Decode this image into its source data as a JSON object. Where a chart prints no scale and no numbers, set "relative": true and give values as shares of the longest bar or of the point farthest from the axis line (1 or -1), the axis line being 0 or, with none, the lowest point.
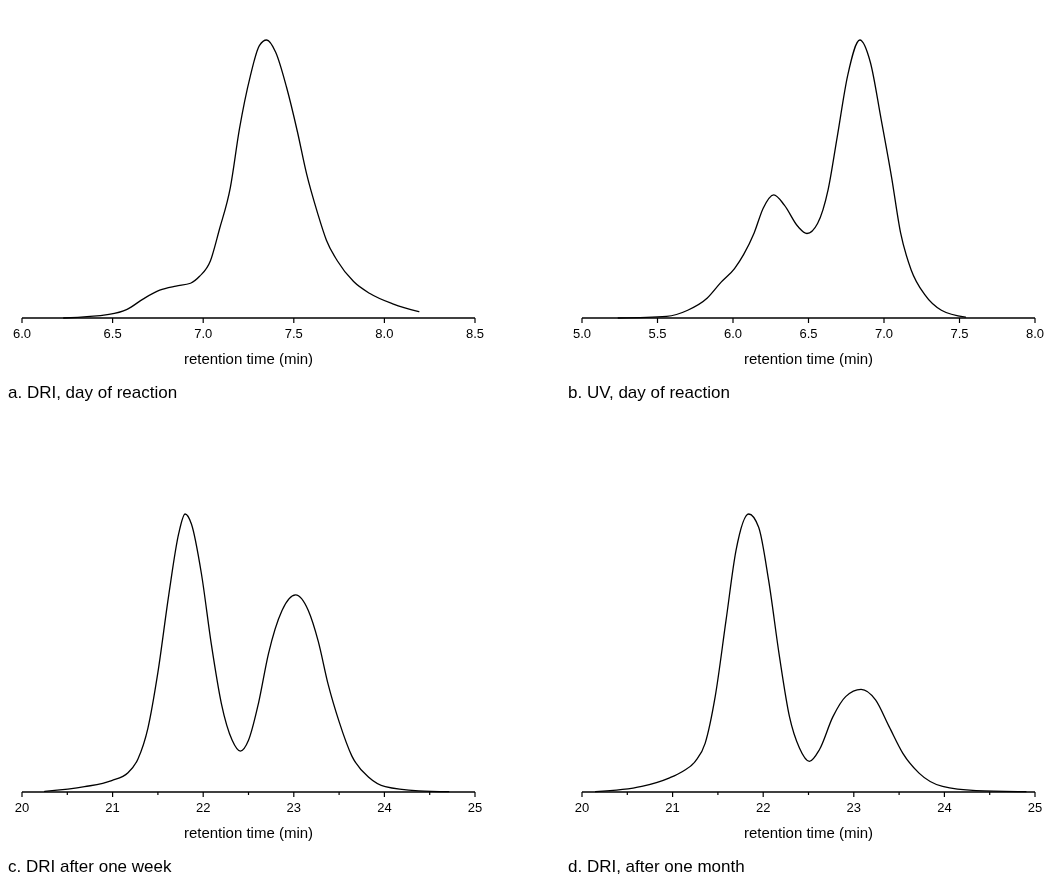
{
  "chart_data": [
    {
      "type": "line",
      "title": "a. DRI, day of reaction",
      "xlabel": "retention time (min)",
      "relative": true,
      "xlim": [
        6.0,
        8.5
      ],
      "xticks": [
        {
          "value": 6,
          "label": "6.0"
        },
        {
          "value": 6.5,
          "label": "6.5"
        },
        {
          "value": 7,
          "label": "7.0"
        },
        {
          "value": 7.5,
          "label": "7.5"
        },
        {
          "value": 8,
          "label": "8.0"
        },
        {
          "value": 8.5,
          "label": "8.5"
        }
      ],
      "x": [
        6.23,
        6.48,
        6.58,
        6.67,
        6.76,
        6.85,
        6.93,
        6.98,
        7.04,
        7.09,
        7.15,
        7.2,
        7.26,
        7.31,
        7.35,
        7.4,
        7.46,
        7.52,
        7.57,
        7.63,
        7.68,
        7.74,
        7.83,
        7.92,
        8.05,
        8.19
      ],
      "series": [
        {
          "color": "#000000",
          "values": [
            0,
            0.013,
            0.031,
            0.069,
            0.1,
            0.115,
            0.125,
            0.15,
            0.206,
            0.32,
            0.47,
            0.68,
            0.87,
            0.98,
            1.0,
            0.956,
            0.83,
            0.67,
            0.52,
            0.38,
            0.28,
            0.206,
            0.131,
            0.088,
            0.05,
            0.023
          ]
        }
      ]
    },
    {
      "type": "line",
      "title": "b. UV, day of reaction",
      "xlabel": "retention time (min)",
      "relative": true,
      "xlim": [
        5.0,
        8.0
      ],
      "xticks": [
        {
          "value": 5,
          "label": "5.0"
        },
        {
          "value": 5.5,
          "label": "5.5"
        },
        {
          "value": 6,
          "label": "6.0"
        },
        {
          "value": 6.5,
          "label": "6.5"
        },
        {
          "value": 7,
          "label": "7.0"
        },
        {
          "value": 7.5,
          "label": "7.5"
        },
        {
          "value": 8,
          "label": "8.0"
        }
      ],
      "x": [
        5.24,
        5.56,
        5.7,
        5.83,
        5.92,
        6.01,
        6.07,
        6.14,
        6.2,
        6.27,
        6.34,
        6.43,
        6.49,
        6.56,
        6.63,
        6.69,
        6.76,
        6.84,
        6.91,
        6.98,
        7.05,
        7.11,
        7.18,
        7.27,
        7.38,
        7.54
      ],
      "series": [
        {
          "color": "#000000",
          "values": [
            0,
            0.006,
            0.028,
            0.072,
            0.128,
            0.178,
            0.228,
            0.306,
            0.395,
            0.443,
            0.406,
            0.329,
            0.304,
            0.34,
            0.462,
            0.651,
            0.874,
            1.0,
            0.919,
            0.718,
            0.507,
            0.306,
            0.173,
            0.084,
            0.028,
            0.003
          ]
        }
      ]
    },
    {
      "type": "line",
      "title": "c. DRI after one week",
      "xlabel": "retention time (min)",
      "relative": true,
      "xlim": [
        20,
        25
      ],
      "xticks": [
        20,
        {
          "value": 20.5,
          "label": null
        },
        21,
        {
          "value": 21.5,
          "label": null
        },
        22,
        {
          "value": 22.5,
          "label": null
        },
        23,
        {
          "value": 23.5,
          "label": null
        },
        24,
        {
          "value": 24.5,
          "label": null
        },
        25
      ],
      "x": [
        20.25,
        20.69,
        20.99,
        21.17,
        21.28,
        21.39,
        21.5,
        21.62,
        21.73,
        21.8,
        21.87,
        21.98,
        22.09,
        22.2,
        22.32,
        22.41,
        22.5,
        22.61,
        22.72,
        22.87,
        23.02,
        23.16,
        23.27,
        23.38,
        23.5,
        23.64,
        23.83,
        24.01,
        24.38,
        24.71
      ],
      "series": [
        {
          "color": "#000000",
          "values": [
            0.002,
            0.019,
            0.041,
            0.069,
            0.119,
            0.23,
            0.43,
            0.709,
            0.93,
            1.0,
            0.964,
            0.786,
            0.531,
            0.319,
            0.186,
            0.147,
            0.186,
            0.319,
            0.497,
            0.653,
            0.709,
            0.653,
            0.542,
            0.386,
            0.253,
            0.13,
            0.052,
            0.019,
            0.004,
            0.001
          ]
        }
      ]
    },
    {
      "type": "line",
      "title": "d. DRI, after one month",
      "xlabel": "retention time (min)",
      "relative": true,
      "xlim": [
        20,
        25
      ],
      "xticks": [
        20,
        {
          "value": 20.5,
          "label": null
        },
        21,
        {
          "value": 21.5,
          "label": null
        },
        22,
        {
          "value": 22.5,
          "label": null
        },
        23,
        {
          "value": 23.5,
          "label": null
        },
        24,
        {
          "value": 24.5,
          "label": null
        },
        25
      ],
      "x": [
        20.15,
        20.66,
        20.96,
        21.11,
        21.25,
        21.36,
        21.47,
        21.59,
        21.7,
        21.84,
        21.95,
        22.06,
        22.18,
        22.29,
        22.4,
        22.51,
        22.62,
        22.77,
        22.91,
        23.08,
        23.24,
        23.39,
        23.54,
        23.72,
        23.98,
        24.35,
        24.9
      ],
      "series": [
        {
          "color": "#000000",
          "values": [
            0.001,
            0.02,
            0.05,
            0.074,
            0.11,
            0.176,
            0.343,
            0.618,
            0.869,
            1.0,
            0.952,
            0.761,
            0.486,
            0.271,
            0.158,
            0.11,
            0.152,
            0.271,
            0.343,
            0.369,
            0.331,
            0.235,
            0.14,
            0.068,
            0.02,
            0.005,
            0.001
          ]
        }
      ]
    }
  ]
}
